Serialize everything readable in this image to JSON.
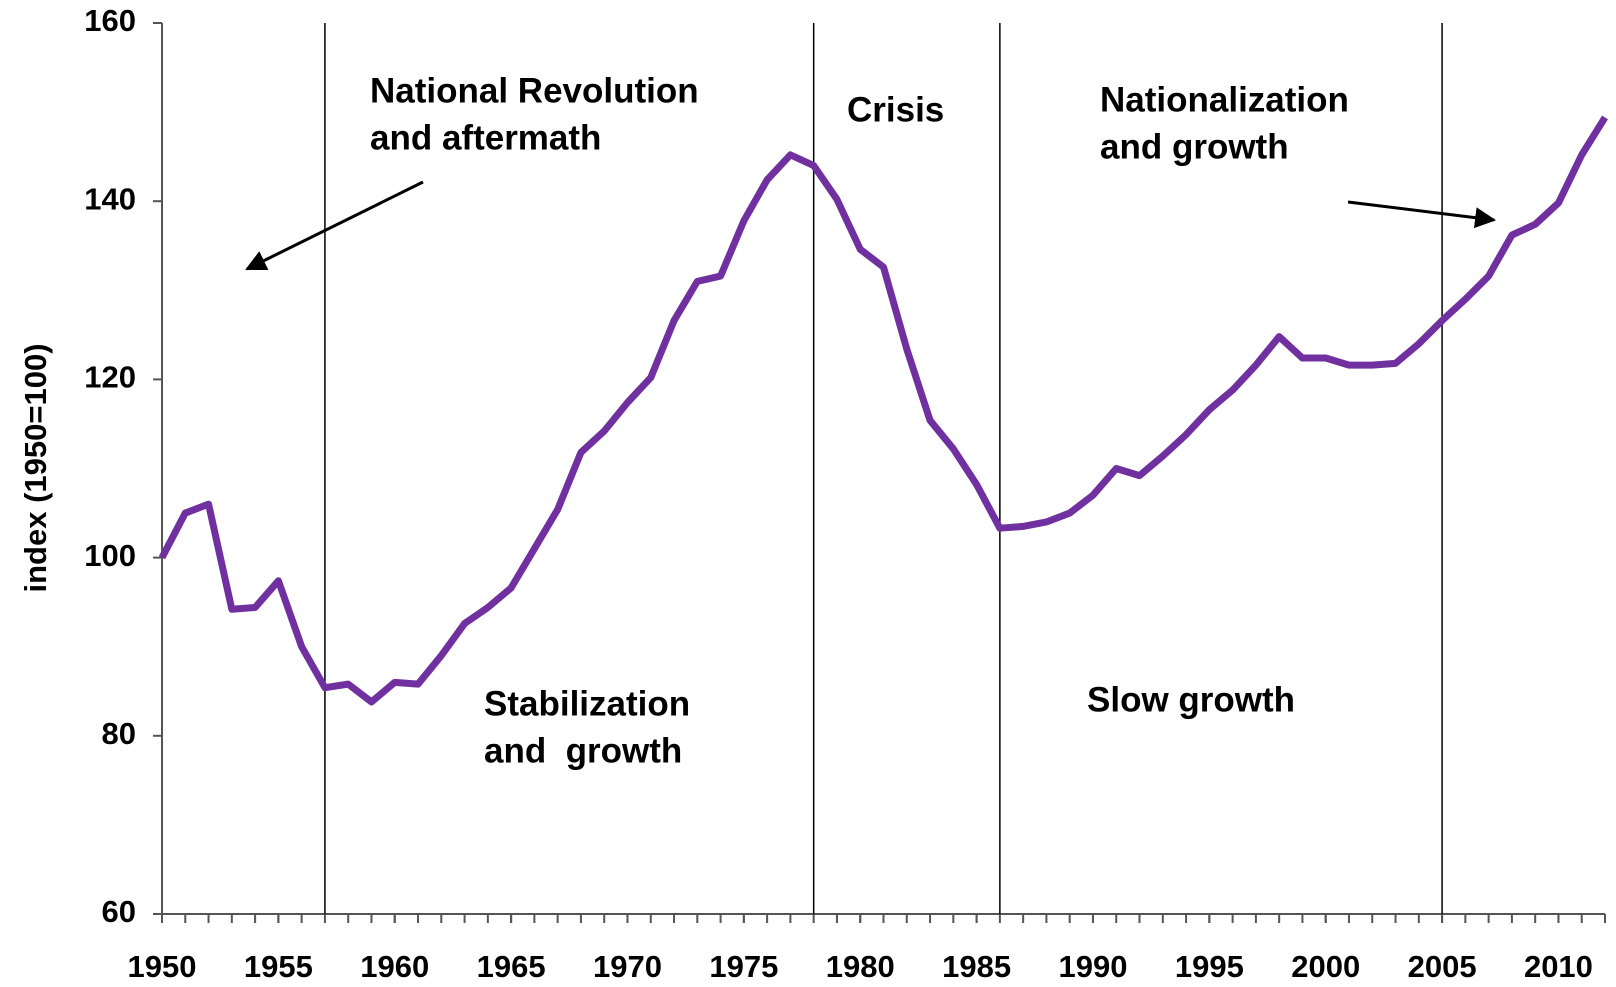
{
  "chart_data": {
    "type": "line",
    "y_label": "index (1950=100)",
    "x": [
      1950,
      1951,
      1952,
      1953,
      1954,
      1955,
      1956,
      1957,
      1958,
      1959,
      1960,
      1961,
      1962,
      1963,
      1964,
      1965,
      1966,
      1967,
      1968,
      1969,
      1970,
      1971,
      1972,
      1973,
      1974,
      1975,
      1976,
      1977,
      1978,
      1979,
      1980,
      1981,
      1982,
      1983,
      1984,
      1985,
      1986,
      1987,
      1988,
      1989,
      1990,
      1991,
      1992,
      1993,
      1994,
      1995,
      1996,
      1997,
      1998,
      1999,
      2000,
      2001,
      2002,
      2003,
      2004,
      2005,
      2006,
      2007,
      2008,
      2009,
      2010,
      2011,
      2012
    ],
    "series": [
      {
        "color": "#7030a0",
        "values": [
          100,
          105,
          106,
          94.2,
          94.4,
          97.4,
          90,
          85.4,
          85.8,
          83.8,
          86,
          85.8,
          89,
          92.6,
          94.4,
          96.6,
          101,
          105.4,
          111.8,
          114.2,
          117.4,
          120.2,
          126.6,
          131,
          131.6,
          137.8,
          142.4,
          145.2,
          144,
          140.2,
          134.6,
          132.6,
          123.4,
          115.4,
          112.2,
          108.2,
          103.3,
          103.5,
          104,
          105,
          107,
          110,
          109.2,
          111.4,
          113.8,
          116.6,
          118.8,
          121.6,
          124.8,
          122.4,
          122.4,
          121.6,
          121.6,
          121.8,
          124,
          126.6,
          129,
          131.6,
          136.2,
          137.4,
          139.8,
          145.2,
          149.4
        ]
      }
    ],
    "xlim": [
      1950,
      2012
    ],
    "xticks": [
      1950,
      1955,
      1960,
      1965,
      1970,
      1975,
      1980,
      1985,
      1990,
      1995,
      2000,
      2005,
      2010
    ],
    "ylim": [
      60,
      160
    ],
    "yticks": [
      60,
      80,
      100,
      120,
      140,
      160
    ],
    "period_lines": [
      1957,
      1978,
      1986,
      2005
    ],
    "annotations": [
      {
        "text": [
          "National Revolution",
          "and aftermath"
        ]
      },
      {
        "text": [
          "Crisis"
        ]
      },
      {
        "text": [
          "Nationalization",
          "and growth"
        ]
      },
      {
        "text": [
          "Stabilization",
          "and  growth"
        ]
      },
      {
        "text": [
          "Slow growth"
        ]
      }
    ]
  }
}
